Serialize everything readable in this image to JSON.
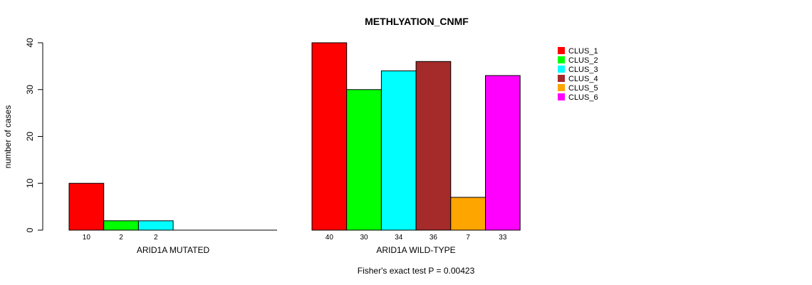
{
  "chart_data": {
    "type": "bar",
    "title": "METHLYATION_CNMF",
    "ylabel": "number of cases",
    "ylim": [
      0,
      40
    ],
    "yticks": [
      0,
      10,
      20,
      30,
      40
    ],
    "footer": "Fisher's exact test P = 0.00423",
    "series_names": [
      "CLUS_1",
      "CLUS_2",
      "CLUS_3",
      "CLUS_4",
      "CLUS_5",
      "CLUS_6"
    ],
    "colors": [
      "#ff0000",
      "#00ff00",
      "#00ffff",
      "#a52a2a",
      "#ffa500",
      "#ff00ff"
    ],
    "groups": [
      {
        "label": "ARID1A MUTATED",
        "values": [
          10,
          2,
          2,
          0,
          0,
          0
        ],
        "count_labels": [
          "10",
          "2",
          "2"
        ]
      },
      {
        "label": "ARID1A WILD-TYPE",
        "values": [
          40,
          30,
          34,
          36,
          7,
          33
        ],
        "count_labels": [
          "40",
          "30",
          "34",
          "36",
          "7",
          "33"
        ]
      }
    ]
  }
}
